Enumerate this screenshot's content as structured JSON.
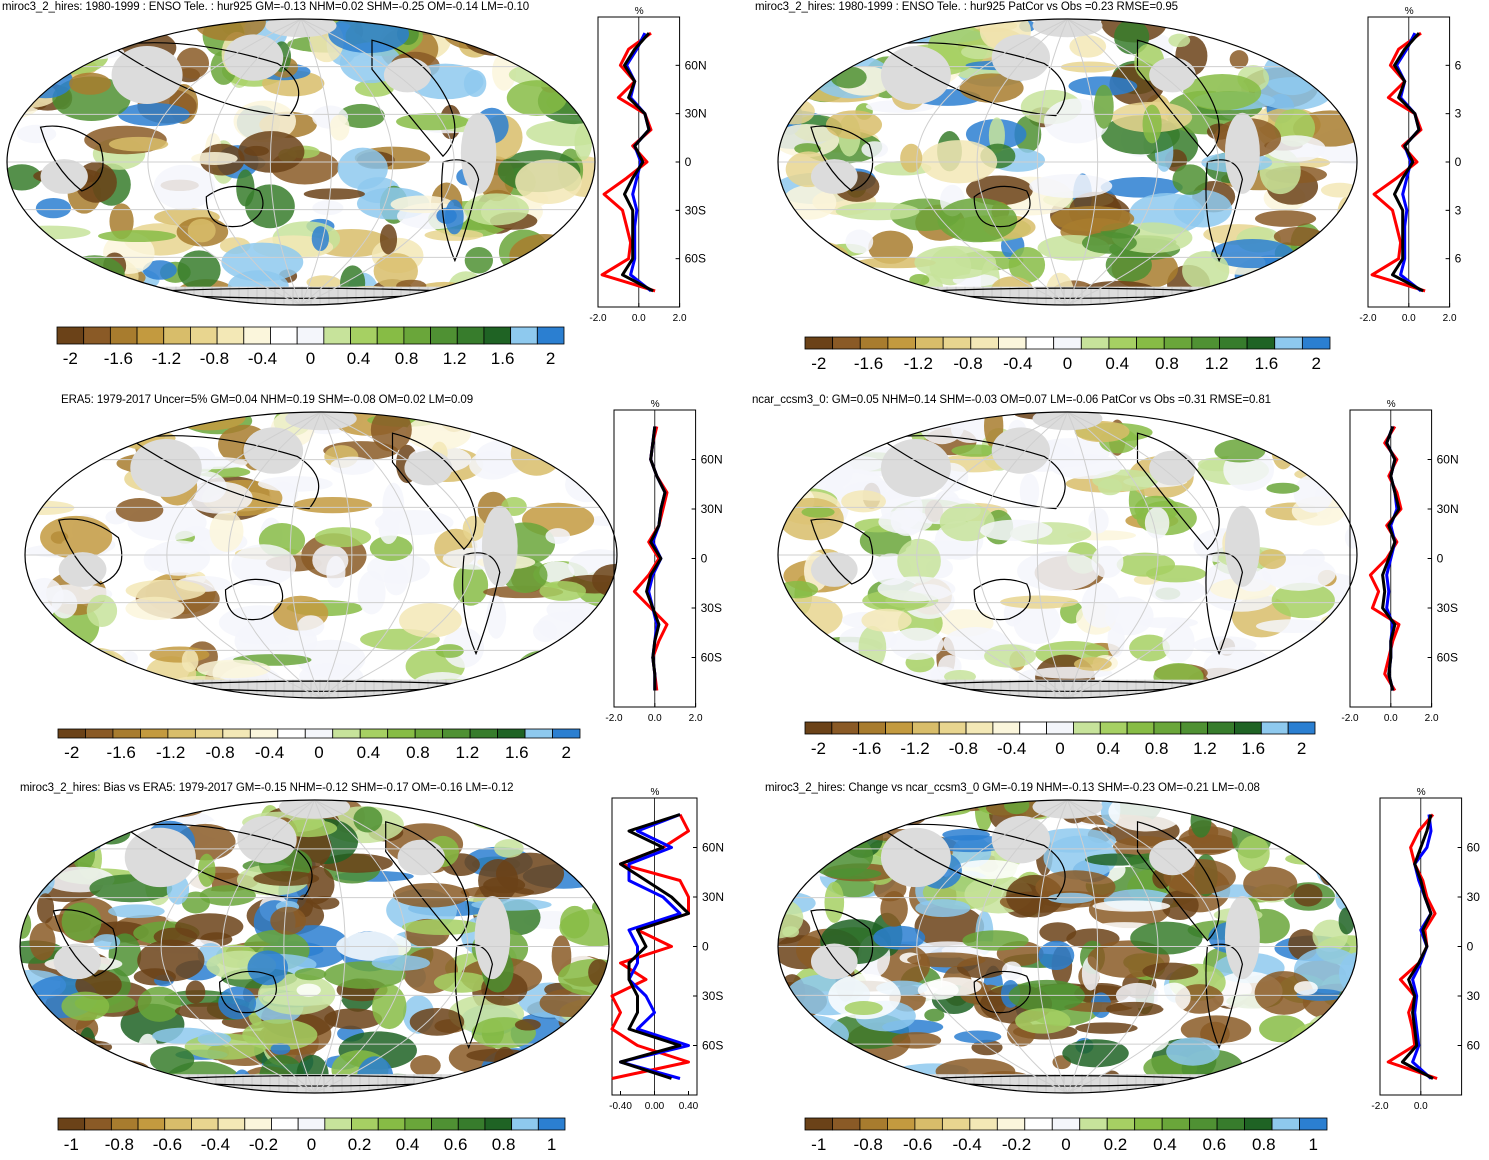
{
  "palette": {
    "humidity": [
      "#6b4218",
      "#8a5a26",
      "#a87c2e",
      "#c39a3f",
      "#d8bd6a",
      "#e8d58f",
      "#f3e8b6",
      "#fbf6dc",
      "#ffffff",
      "#f4f6fb",
      "#c7e39b",
      "#a6d063",
      "#87bc45",
      "#6aa63a",
      "#4f9133",
      "#377c2c",
      "#1f6324",
      "#8ec9ee",
      "#2b7fd1"
    ],
    "land_mask": "#dcdcdc",
    "water_grid": "#c8c8c8",
    "zonal_colors": {
      "model": "#ff0000",
      "obs": "#0000ff",
      "mean": "#000000"
    }
  },
  "panels": [
    {
      "id": "p1",
      "title": "miroc3_2_hires: 1980-1999 : ENSO Tele. : hur925 GM=-0.13 NHM=0.02 SHM=-0.25 OM=-0.14 LM=-0.10",
      "colorbar_labels": [
        "-2",
        "-1.6",
        "-1.2",
        "-0.8",
        "-0.4",
        "0",
        "0.4",
        "0.8",
        "1.2",
        "1.6",
        "2"
      ],
      "lat_labels": [
        "60N",
        "30N",
        "0",
        "30S",
        "60S"
      ],
      "x_ticks": [
        "-2.0",
        "0.0",
        "2.0"
      ],
      "unit": "%"
    },
    {
      "id": "p2",
      "title": "miroc3_2_hires: 1980-1999 : ENSO Tele. : hur925 PatCor vs Obs =0.23 RMSE=0.95",
      "colorbar_labels": [
        "-2",
        "-1.6",
        "-1.2",
        "-0.8",
        "-0.4",
        "0",
        "0.4",
        "0.8",
        "1.2",
        "1.6",
        "2"
      ],
      "lat_labels": [
        "6",
        "3",
        "0",
        "3",
        "6"
      ],
      "x_ticks": [
        "-2.0",
        "0.0",
        "2.0"
      ],
      "unit": "%"
    },
    {
      "id": "p3",
      "title": "ERA5: 1979-2017 Uncer=5% GM=0.04 NHM=0.19 SHM=-0.08 OM=0.02 LM=0.09",
      "colorbar_labels": [
        "-2",
        "-1.6",
        "-1.2",
        "-0.8",
        "-0.4",
        "0",
        "0.4",
        "0.8",
        "1.2",
        "1.6",
        "2"
      ],
      "lat_labels": [
        "60N",
        "30N",
        "0",
        "30S",
        "60S"
      ],
      "x_ticks": [
        "-2.0",
        "0.0",
        "2.0"
      ],
      "unit": "%"
    },
    {
      "id": "p4",
      "title": "ncar_ccsm3_0: GM=0.05 NHM=0.14 SHM=-0.03 OM=0.07 LM=-0.06 PatCor vs Obs =0.31 RMSE=0.81",
      "colorbar_labels": [
        "-2",
        "-1.6",
        "-1.2",
        "-0.8",
        "-0.4",
        "0",
        "0.4",
        "0.8",
        "1.2",
        "1.6",
        "2"
      ],
      "lat_labels": [
        "60N",
        "30N",
        "0",
        "30S",
        "60S"
      ],
      "x_ticks": [
        "-2.0",
        "0.0",
        "2.0"
      ],
      "unit": "%"
    },
    {
      "id": "p5",
      "title": "miroc3_2_hires: Bias vs ERA5: 1979-2017 GM=-0.15 NHM=-0.12 SHM=-0.17 OM=-0.16 LM=-0.12",
      "colorbar_labels": [
        "-1",
        "-0.8",
        "-0.6",
        "-0.4",
        "-0.2",
        "0",
        "0.2",
        "0.4",
        "0.6",
        "0.8",
        "1"
      ],
      "lat_labels": [
        "60N",
        "30N",
        "0",
        "30S",
        "60S"
      ],
      "x_ticks": [
        "-0.40",
        "0.00",
        "0.40"
      ],
      "unit": "%"
    },
    {
      "id": "p6",
      "title": "miroc3_2_hires: Change vs ncar_ccsm3_0 GM=-0.19 NHM=-0.13 SHM=-0.23 OM=-0.21 LM=-0.08",
      "colorbar_labels": [
        "-1",
        "-0.8",
        "-0.6",
        "-0.4",
        "-0.2",
        "0",
        "0.2",
        "0.4",
        "0.6",
        "0.8",
        "1"
      ],
      "lat_labels": [
        "60",
        "30",
        "0",
        "30",
        "60"
      ],
      "x_ticks": [
        "-2.0",
        "0.0"
      ],
      "unit": "%"
    }
  ],
  "chart_data": [
    {
      "type": "heatmap",
      "panel": "p1",
      "projection": "robinson",
      "colorbar_range": [
        -2,
        2
      ],
      "zonal_profile": {
        "y_lat": [
          80,
          70,
          60,
          50,
          40,
          30,
          20,
          10,
          0,
          -10,
          -20,
          -30,
          -40,
          -50,
          -60,
          -70,
          -80
        ],
        "series": [
          {
            "color": "red",
            "values": [
              0.6,
              -0.5,
              -0.9,
              -0.2,
              -1.0,
              0.3,
              0.6,
              -0.3,
              0.4,
              -0.6,
              -1.7,
              -0.8,
              -0.6,
              -0.4,
              -0.5,
              -1.8,
              0.8
            ]
          },
          {
            "color": "blue",
            "values": [
              0.3,
              -0.1,
              -0.6,
              -0.2,
              -0.4,
              0.3,
              0.5,
              -0.2,
              0.1,
              -0.1,
              -0.3,
              -0.1,
              -0.2,
              -0.2,
              -0.2,
              -0.4,
              0.6
            ]
          },
          {
            "color": "black",
            "values": [
              0.5,
              -0.2,
              -0.7,
              -0.2,
              -0.5,
              0.3,
              0.5,
              -0.2,
              0.2,
              -0.3,
              -0.7,
              -0.3,
              -0.3,
              -0.3,
              -0.3,
              -0.8,
              0.7
            ]
          }
        ]
      }
    },
    {
      "type": "heatmap",
      "panel": "p2",
      "projection": "robinson",
      "colorbar_range": [
        -2,
        2
      ],
      "zonal_profile": {
        "y_lat": [
          80,
          70,
          60,
          50,
          40,
          30,
          20,
          10,
          0,
          -10,
          -20,
          -30,
          -40,
          -50,
          -60,
          -70,
          -80
        ],
        "series": [
          {
            "color": "red",
            "values": [
              0.6,
              -0.5,
              -0.9,
              -0.2,
              -1.0,
              0.3,
              0.6,
              -0.3,
              0.4,
              -0.6,
              -1.7,
              -0.8,
              -0.6,
              -0.4,
              -0.5,
              -1.8,
              0.8
            ]
          },
          {
            "color": "blue",
            "values": [
              0.3,
              -0.1,
              -0.6,
              -0.2,
              -0.4,
              0.3,
              0.5,
              -0.2,
              0.1,
              -0.1,
              -0.3,
              -0.1,
              -0.2,
              -0.2,
              -0.2,
              -0.4,
              0.6
            ]
          },
          {
            "color": "black",
            "values": [
              0.5,
              -0.2,
              -0.7,
              -0.2,
              -0.5,
              0.3,
              0.5,
              -0.2,
              0.2,
              -0.3,
              -0.7,
              -0.3,
              -0.3,
              -0.3,
              -0.3,
              -0.8,
              0.7
            ]
          }
        ]
      }
    },
    {
      "type": "heatmap",
      "panel": "p3",
      "projection": "robinson",
      "colorbar_range": [
        -2,
        2
      ],
      "zonal_profile": {
        "y_lat": [
          80,
          70,
          60,
          50,
          40,
          30,
          20,
          10,
          0,
          -10,
          -20,
          -30,
          -40,
          -50,
          -60,
          -70,
          -80
        ],
        "series": [
          {
            "color": "red",
            "values": [
              0.1,
              -0.1,
              -0.2,
              0.1,
              0.6,
              0.4,
              0.2,
              -0.3,
              0.2,
              -0.3,
              -1.0,
              -0.2,
              0.6,
              0.2,
              -0.1,
              0.0,
              0.1
            ]
          },
          {
            "color": "blue",
            "values": [
              0.0,
              -0.1,
              -0.2,
              0.1,
              0.5,
              0.3,
              0.2,
              -0.1,
              0.3,
              -0.1,
              -0.3,
              -0.1,
              0.1,
              0.0,
              -0.1,
              0.0,
              0.0
            ]
          },
          {
            "color": "black",
            "values": [
              0.0,
              -0.1,
              -0.2,
              0.1,
              0.5,
              0.3,
              0.2,
              -0.2,
              0.3,
              -0.2,
              -0.4,
              -0.1,
              0.2,
              0.0,
              -0.1,
              0.0,
              0.0
            ]
          }
        ]
      }
    },
    {
      "type": "heatmap",
      "panel": "p4",
      "projection": "robinson",
      "colorbar_range": [
        -2,
        2
      ],
      "zonal_profile": {
        "y_lat": [
          80,
          70,
          60,
          50,
          40,
          30,
          20,
          10,
          0,
          -10,
          -20,
          -30,
          -40,
          -50,
          -60,
          -70,
          -80
        ],
        "series": [
          {
            "color": "red",
            "values": [
              0.2,
              -0.3,
              0.3,
              -0.1,
              0.3,
              0.5,
              -0.2,
              0.3,
              -0.2,
              -1.0,
              -0.6,
              -0.9,
              0.4,
              0.1,
              -0.1,
              -0.3,
              0.2
            ]
          },
          {
            "color": "blue",
            "values": [
              0.1,
              -0.2,
              0.2,
              0.0,
              0.2,
              0.3,
              0.0,
              0.2,
              0.0,
              -0.2,
              -0.1,
              -0.2,
              0.1,
              0.0,
              0.0,
              -0.1,
              0.1
            ]
          },
          {
            "color": "black",
            "values": [
              0.1,
              -0.2,
              0.2,
              0.0,
              0.2,
              0.4,
              -0.1,
              0.2,
              -0.1,
              -0.4,
              -0.3,
              -0.4,
              0.2,
              0.0,
              0.0,
              -0.1,
              0.1
            ]
          }
        ]
      }
    },
    {
      "type": "heatmap",
      "panel": "p5",
      "projection": "robinson",
      "colorbar_range": [
        -1,
        1
      ],
      "zonal_profile": {
        "y_lat": [
          80,
          70,
          60,
          50,
          40,
          30,
          20,
          10,
          0,
          -10,
          -20,
          -30,
          -40,
          -50,
          -60,
          -70,
          -80
        ],
        "series": [
          {
            "color": "red",
            "values": [
              0.3,
              0.4,
              0.1,
              -0.4,
              0.3,
              0.4,
              0.4,
              -0.2,
              0.2,
              -0.4,
              -0.1,
              -0.5,
              -0.4,
              -0.5,
              -0.2,
              0.4,
              -0.5
            ]
          },
          {
            "color": "blue",
            "values": [
              0.3,
              -0.2,
              0.2,
              -0.3,
              -0.3,
              0.1,
              0.3,
              -0.3,
              -0.2,
              -0.2,
              -0.3,
              -0.1,
              0.0,
              -0.2,
              0.4,
              -0.4,
              0.3
            ]
          },
          {
            "color": "black",
            "values": [
              0.3,
              -0.3,
              0.1,
              -0.4,
              -0.1,
              0.2,
              0.4,
              -0.2,
              -0.1,
              -0.3,
              -0.3,
              -0.2,
              -0.2,
              -0.3,
              0.3,
              -0.4,
              0.2
            ]
          }
        ]
      }
    },
    {
      "type": "heatmap",
      "panel": "p6",
      "projection": "robinson",
      "colorbar_range": [
        -1,
        1
      ],
      "zonal_profile": {
        "y_lat": [
          80,
          70,
          60,
          50,
          40,
          30,
          20,
          10,
          0,
          -10,
          -20,
          -30,
          -40,
          -50,
          -60,
          -70,
          -80
        ],
        "series": [
          {
            "color": "red",
            "values": [
              0.6,
              -0.1,
              -0.5,
              -0.3,
              0.1,
              0.3,
              0.7,
              0.2,
              0.3,
              -0.1,
              -1.0,
              -0.3,
              -0.6,
              -0.4,
              -0.3,
              -1.6,
              0.8
            ]
          },
          {
            "color": "blue",
            "values": [
              0.4,
              0.5,
              0.3,
              -0.3,
              -0.1,
              0.2,
              0.5,
              0.0,
              0.3,
              0.0,
              -0.4,
              -0.2,
              -0.3,
              -0.2,
              -0.1,
              -0.4,
              0.5
            ]
          },
          {
            "color": "black",
            "values": [
              0.5,
              0.3,
              0.0,
              -0.3,
              0.0,
              0.2,
              0.5,
              0.1,
              0.3,
              -0.1,
              -0.6,
              -0.3,
              -0.4,
              -0.3,
              -0.2,
              -0.9,
              0.6
            ]
          }
        ]
      }
    }
  ]
}
